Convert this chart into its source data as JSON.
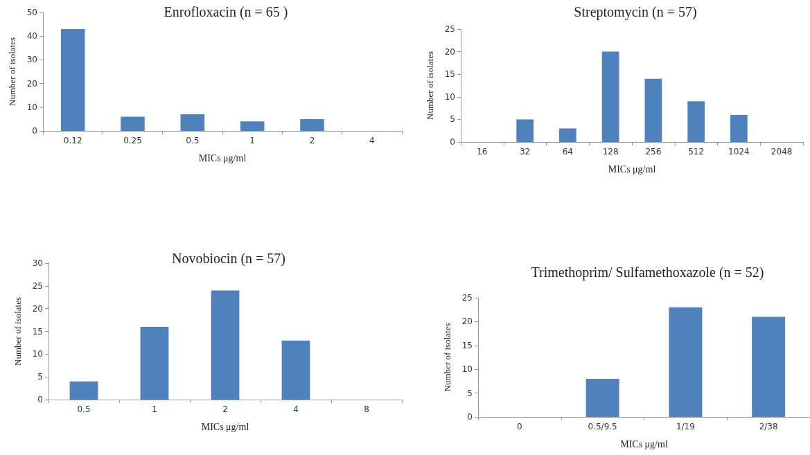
{
  "chart_data": [
    {
      "type": "bar",
      "title": "Enrofloxacin (n = 65 )",
      "xlabel": "MICs μg/ml",
      "ylabel": "Number of isolates",
      "categories": [
        "0.12",
        "0.25",
        "0.5",
        "1",
        "2",
        "4"
      ],
      "values": [
        43,
        6,
        7,
        4,
        5,
        0
      ],
      "color": "#4f81bd",
      "ylim": [
        0,
        50
      ],
      "yticks": [
        0,
        10,
        20,
        30,
        40,
        50
      ],
      "grid": false
    },
    {
      "type": "bar",
      "title": "Streptomycin (n = 57)",
      "xlabel": "MICs μg/ml",
      "ylabel": "Number of isolates",
      "categories": [
        "16",
        "32",
        "64",
        "128",
        "256",
        "512",
        "1024",
        "2048"
      ],
      "values": [
        0,
        5,
        3,
        20,
        14,
        9,
        6,
        0
      ],
      "color": "#4f81bd",
      "ylim": [
        0,
        25
      ],
      "yticks": [
        0,
        5,
        10,
        15,
        20,
        25
      ],
      "grid": false
    },
    {
      "type": "bar",
      "title": "Novobiocin (n = 57)",
      "xlabel": "MICs μg/ml",
      "ylabel": "Number of isolates",
      "categories": [
        "0.5",
        "1",
        "2",
        "4",
        "8"
      ],
      "values": [
        4,
        16,
        24,
        13,
        0
      ],
      "color": "#4f81bd",
      "ylim": [
        0,
        30
      ],
      "yticks": [
        0,
        5,
        10,
        15,
        20,
        25,
        30
      ],
      "grid": false
    },
    {
      "type": "bar",
      "title": "Trimethoprim/ Sulfamethoxazole (n = 52)",
      "xlabel": "MICs μg/ml",
      "ylabel": "Number of isolates",
      "categories": [
        "0",
        "0.5/9.5",
        "1/19",
        "2/38"
      ],
      "values": [
        0,
        8,
        23,
        21
      ],
      "color": "#4f81bd",
      "ylim": [
        0,
        25
      ],
      "yticks": [
        0,
        5,
        10,
        15,
        20,
        25
      ],
      "grid": false
    }
  ]
}
